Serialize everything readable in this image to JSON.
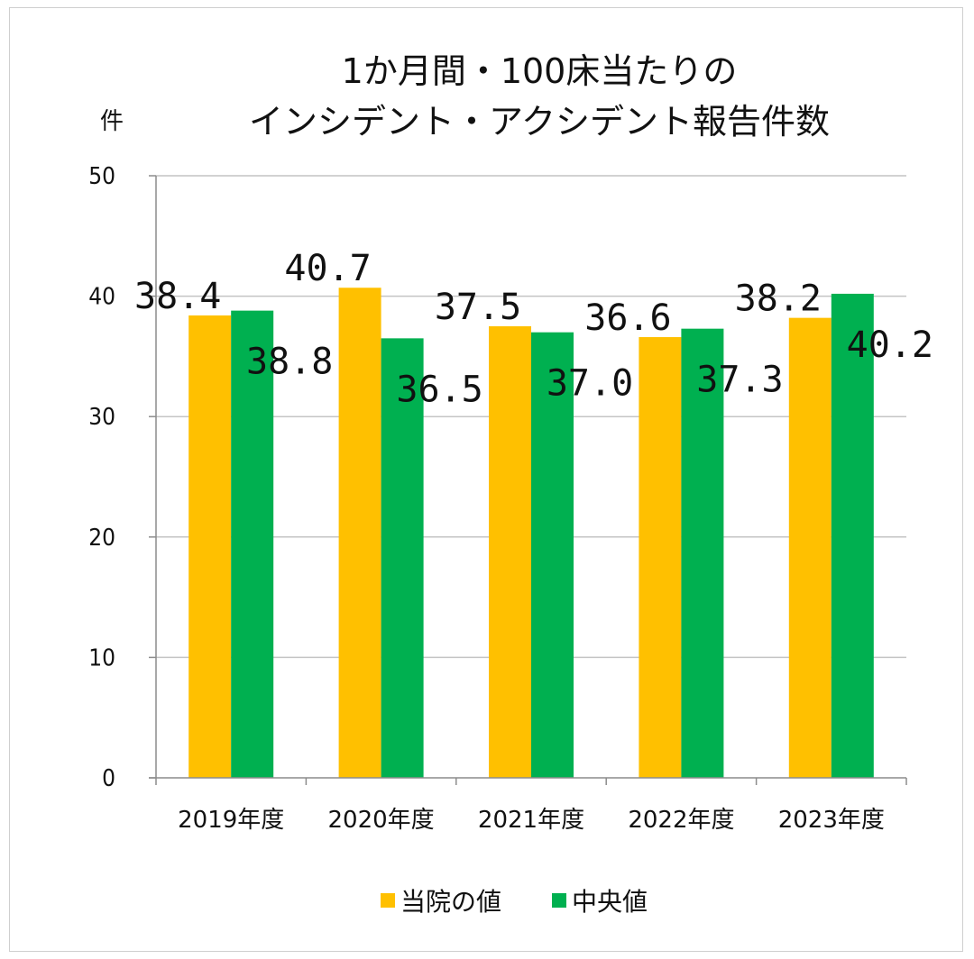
{
  "chart_data": {
    "type": "bar",
    "title_lines": [
      "1か月間・100床当たりの",
      "インシデント・アクシデント報告件数"
    ],
    "ylabel": "件",
    "ylim": [
      0,
      50
    ],
    "yticks": [
      0,
      10,
      20,
      30,
      40,
      50
    ],
    "grid": true,
    "legend_position": "bottom",
    "categories": [
      "2019年度",
      "2020年度",
      "2021年度",
      "2022年度",
      "2023年度"
    ],
    "series": [
      {
        "name": "当院の値",
        "color": "#FFC000",
        "values": [
          38.4,
          40.7,
          37.5,
          36.6,
          38.2
        ],
        "labels": [
          "38.4",
          "40.7",
          "37.5",
          "36.6",
          "38.2"
        ]
      },
      {
        "name": "中央値",
        "color": "#00B050",
        "values": [
          38.8,
          36.5,
          37.0,
          37.3,
          40.2
        ],
        "labels": [
          "38.8",
          "36.5",
          "37.0",
          "37.3",
          "40.2"
        ]
      }
    ]
  }
}
